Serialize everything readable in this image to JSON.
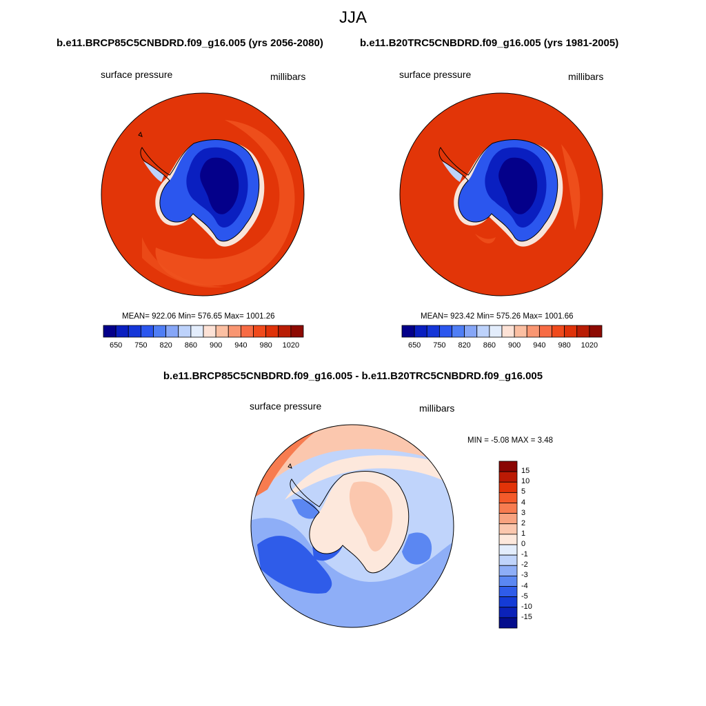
{
  "figure": {
    "suptitle": "JJA",
    "left_title": "b.e11.BRCP85C5CNBDRD.f09_g16.005 (yrs 2056-2080)",
    "right_title": "b.e11.B20TRC5CNBDRD.f09_g16.005 (yrs 1981-2005)",
    "diff_title": "b.e11.BRCP85C5CNBDRD.f09_g16.005 - b.e11.B20TRC5CNBDRD.f09_g16.005"
  },
  "panels": {
    "left": {
      "variable": "surface pressure",
      "units": "millibars",
      "stats": "MEAN= 922.06  Min= 576.65  Max= 1001.26"
    },
    "right": {
      "variable": "surface pressure",
      "units": "millibars",
      "stats": "MEAN= 923.42  Min= 575.26  Max= 1001.66"
    },
    "diff": {
      "variable": "surface pressure",
      "units": "millibars",
      "stats": "MIN =  -5.08 MAX =   3.48"
    }
  },
  "colorbar_abs": {
    "tick_labels": [
      "650",
      "750",
      "820",
      "860",
      "900",
      "940",
      "980",
      "1020"
    ],
    "colors": [
      "#04008a",
      "#0a1fc0",
      "#1536d8",
      "#2b56ee",
      "#4f7ef5",
      "#86a6f7",
      "#bdd2fb",
      "#e3edfc",
      "#fde2d6",
      "#fbbfa2",
      "#f99672",
      "#f76b44",
      "#f04a1c",
      "#df3209",
      "#b91d05",
      "#8d0a02"
    ]
  },
  "colorbar_diff": {
    "tick_labels": [
      "15",
      "10",
      "5",
      "4",
      "3",
      "2",
      "1",
      "0",
      "-1",
      "-2",
      "-3",
      "-4",
      "-5",
      "-10",
      "-15"
    ],
    "colors": [
      "#8a0502",
      "#bb1a04",
      "#e23308",
      "#f45a2a",
      "#f77c50",
      "#f8a380",
      "#fbc7ae",
      "#fde8dc",
      "#e3edfc",
      "#c0d4fb",
      "#8eaef7",
      "#5b87f2",
      "#2f5ce9",
      "#143bd6",
      "#0b22b8",
      "#040d8c"
    ]
  },
  "map_colors": {
    "ocean_high": "#e23508",
    "ocean_mid": "#f0521e",
    "plateau_deep": "#04008a",
    "plateau_mid": "#0a1fc0",
    "plateau_edge": "#2b56ee",
    "coast_light": "#bdd2fb",
    "diff_blue_deep": "#2f5ce9",
    "diff_blue_mid": "#5b87f2",
    "diff_blue_light": "#8eaef7",
    "diff_pale": "#c0d4fb",
    "diff_orange_light": "#fbc7ae",
    "diff_orange": "#f77c50",
    "diff_white": "#fde8dc"
  }
}
